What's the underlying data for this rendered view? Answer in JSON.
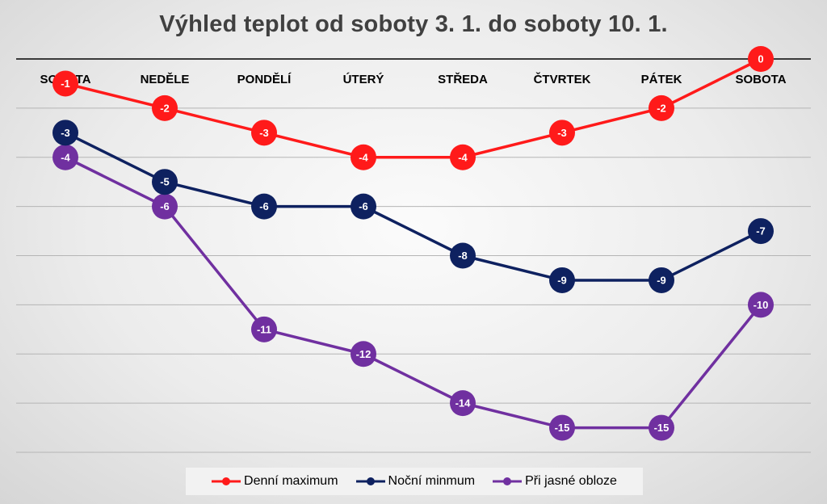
{
  "chart_data": {
    "type": "line",
    "title": "Výhled teplot od soboty 3. 1. do soboty 10. 1.",
    "categories": [
      "SOBOTA",
      "NEDĚLE",
      "PONDĚLÍ",
      "ÚTERÝ",
      "STŘEDA",
      "ČTVRTEK",
      "PÁTEK",
      "SOBOTA"
    ],
    "ylim": [
      -16,
      0
    ],
    "grid": true,
    "category_axis_position": "top",
    "legend_position": "bottom",
    "series": [
      {
        "name": "Denní maximum",
        "color": "#ff1a1a",
        "values": [
          -1,
          -2,
          -3,
          -4,
          -4,
          -3,
          -2,
          0
        ]
      },
      {
        "name": "Noční minmum",
        "color": "#0e2160",
        "values": [
          -3,
          -5,
          -6,
          -6,
          -8,
          -9,
          -9,
          -7
        ]
      },
      {
        "name": "Při jasné obloze",
        "color": "#7030a0",
        "values": [
          -4,
          -6,
          -11,
          -12,
          -14,
          -15,
          -15,
          -10
        ]
      }
    ]
  }
}
